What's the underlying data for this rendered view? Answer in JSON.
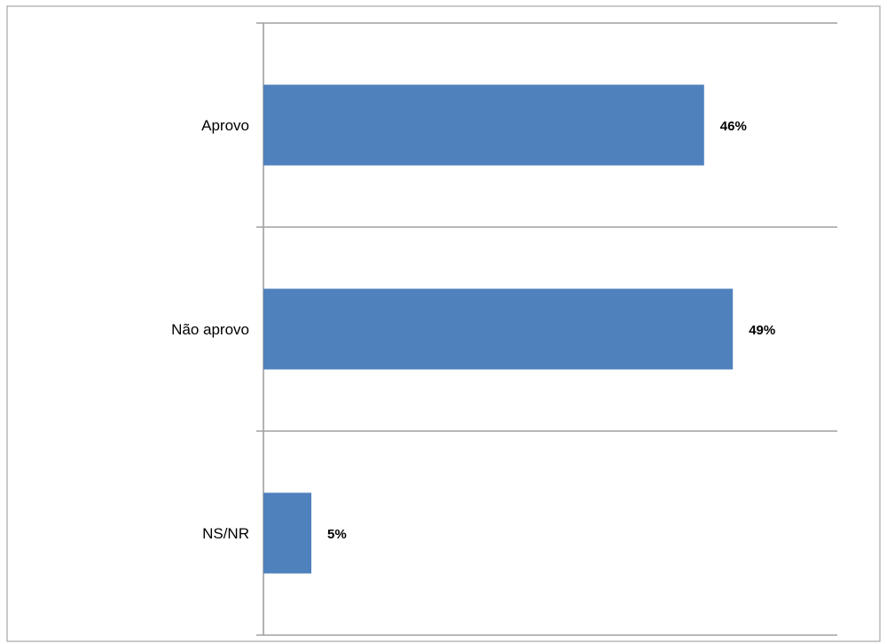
{
  "chart_data": {
    "type": "bar",
    "orientation": "horizontal",
    "categories": [
      "Aprovo",
      "Não aprovo",
      "NS/NR"
    ],
    "values": [
      46,
      49,
      5
    ],
    "value_labels": [
      "46%",
      "49%",
      "5%"
    ],
    "bar_color": "#4f81bd",
    "xlim": [
      0,
      60
    ],
    "grid": true
  }
}
